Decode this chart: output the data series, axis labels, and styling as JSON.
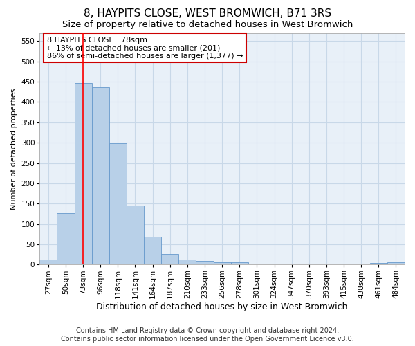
{
  "title": "8, HAYPITS CLOSE, WEST BROMWICH, B71 3RS",
  "subtitle": "Size of property relative to detached houses in West Bromwich",
  "xlabel": "Distribution of detached houses by size in West Bromwich",
  "ylabel": "Number of detached properties",
  "categories": [
    "27sqm",
    "50sqm",
    "73sqm",
    "96sqm",
    "118sqm",
    "141sqm",
    "164sqm",
    "187sqm",
    "210sqm",
    "233sqm",
    "256sqm",
    "278sqm",
    "301sqm",
    "324sqm",
    "347sqm",
    "370sqm",
    "393sqm",
    "415sqm",
    "438sqm",
    "461sqm",
    "484sqm"
  ],
  "values": [
    13,
    126,
    447,
    437,
    298,
    145,
    68,
    27,
    13,
    9,
    6,
    5,
    2,
    2,
    1,
    1,
    1,
    0,
    0,
    4,
    5
  ],
  "bar_color": "#b8d0e8",
  "bar_edge_color": "#6699cc",
  "red_line_x": 2,
  "annotation_line1": "8 HAYPITS CLOSE:  78sqm",
  "annotation_line2": "← 13% of detached houses are smaller (201)",
  "annotation_line3": "86% of semi-detached houses are larger (1,377) →",
  "annotation_box_color": "#ffffff",
  "annotation_box_edge_color": "#cc0000",
  "ylim": [
    0,
    570
  ],
  "yticks": [
    0,
    50,
    100,
    150,
    200,
    250,
    300,
    350,
    400,
    450,
    500,
    550
  ],
  "footer_line1": "Contains HM Land Registry data © Crown copyright and database right 2024.",
  "footer_line2": "Contains public sector information licensed under the Open Government Licence v3.0.",
  "background_color": "#ffffff",
  "grid_color": "#c8d8e8",
  "axes_bg_color": "#e8f0f8",
  "title_fontsize": 11,
  "subtitle_fontsize": 9.5,
  "ylabel_fontsize": 8,
  "xlabel_fontsize": 9,
  "tick_fontsize": 7.5,
  "annotation_fontsize": 8,
  "footer_fontsize": 7
}
